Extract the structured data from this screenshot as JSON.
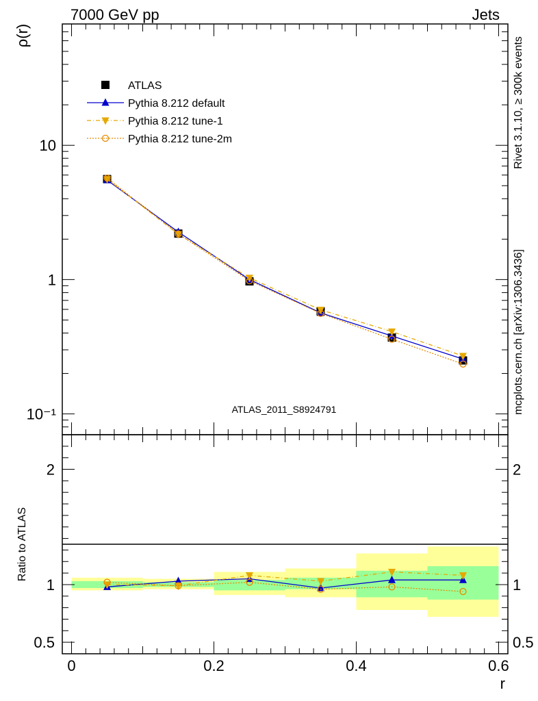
{
  "header": {
    "energy_label": "7000 GeV pp",
    "process_label": "Jets"
  },
  "side_labels": {
    "generator": "Rivet 3.1.10, ≥ 300k events",
    "source": "mcplots.cern.ch [arXiv:1306.3436]"
  },
  "colors": {
    "data": "#000000",
    "default": "#0000cc",
    "tune1": "#e6a800",
    "tune2m": "#e68a00",
    "band_inner": "#99ff99",
    "band_outer": "#ffff99",
    "watermark": "#999999"
  },
  "chart_data": {
    "type": "line",
    "analysis_label": "ATLAS_2011_S8924791",
    "xlabel": "r",
    "main": {
      "ylabel": "ρ(r)",
      "yscale": "log",
      "ylim": [
        0.07,
        80
      ],
      "yticks": [
        {
          "value": 0.1,
          "label": "10⁻¹"
        },
        {
          "value": 1,
          "label": "1"
        },
        {
          "value": 10,
          "label": "10"
        }
      ]
    },
    "ratio": {
      "ylabel": "Ratio to ATLAS",
      "ylim": [
        0.4,
        2.3
      ],
      "yticks": [
        {
          "value": 0.5,
          "label": "0.5"
        },
        {
          "value": 1,
          "label": "1"
        },
        {
          "value": 2,
          "label": "2"
        }
      ]
    },
    "xlim": [
      -0.013,
      0.613
    ],
    "xticks": [
      {
        "value": 0,
        "label": "0"
      },
      {
        "value": 0.2,
        "label": "0.2"
      },
      {
        "value": 0.4,
        "label": "0.4"
      },
      {
        "value": 0.6,
        "label": "0.6"
      }
    ],
    "x": [
      0.05,
      0.15,
      0.25,
      0.35,
      0.45,
      0.55
    ],
    "bins": [
      [
        0.0,
        0.1
      ],
      [
        0.1,
        0.2
      ],
      [
        0.2,
        0.3
      ],
      [
        0.3,
        0.4
      ],
      [
        0.4,
        0.5
      ],
      [
        0.5,
        0.6
      ]
    ],
    "series": [
      {
        "key": "data",
        "name": "ATLAS",
        "values": [
          5.6,
          2.2,
          0.97,
          0.58,
          0.37,
          0.25
        ]
      },
      {
        "key": "default",
        "name": "Pythia 8.212 default",
        "values": [
          5.5,
          2.26,
          1.0,
          0.565,
          0.38,
          0.256
        ],
        "ratio": [
          0.98,
          1.03,
          1.05,
          0.97,
          1.04,
          1.04
        ]
      },
      {
        "key": "tune1",
        "name": "Pythia 8.212 tune-1",
        "values": [
          5.6,
          2.18,
          1.03,
          0.595,
          0.41,
          0.27
        ],
        "ratio": [
          1.0,
          0.99,
          1.08,
          1.03,
          1.11,
          1.08
        ]
      },
      {
        "key": "tune2m",
        "name": "Pythia 8.212 tune-2m",
        "values": [
          5.7,
          2.19,
          0.98,
          0.56,
          0.36,
          0.235
        ],
        "ratio": [
          1.02,
          0.99,
          1.02,
          0.96,
          0.98,
          0.94
        ]
      }
    ],
    "uncertainty_bands": {
      "inner": [
        [
          0.97,
          1.03
        ],
        [
          0.98,
          1.02
        ],
        [
          0.95,
          1.04
        ],
        [
          0.96,
          1.06
        ],
        [
          0.89,
          1.12
        ],
        [
          0.87,
          1.16
        ]
      ],
      "outer": [
        [
          0.95,
          1.06
        ],
        [
          0.96,
          1.05
        ],
        [
          0.91,
          1.11
        ],
        [
          0.89,
          1.14
        ],
        [
          0.78,
          1.27
        ],
        [
          0.72,
          1.33
        ]
      ]
    },
    "legend_position": "top-left"
  }
}
